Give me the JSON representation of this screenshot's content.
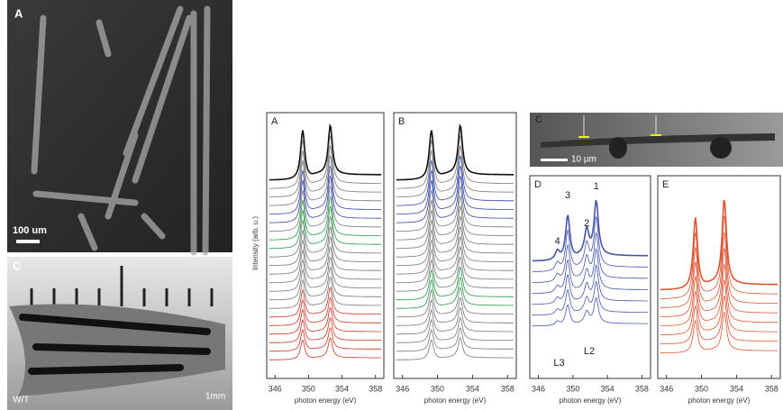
{
  "photos": [
    {
      "label": "A",
      "scale_bar": "100 um"
    },
    {
      "label": "C",
      "corner": "W/T",
      "scale_bar": "1mm"
    }
  ],
  "spectra": {
    "y_label": "Intensity (arb. u.)",
    "panels": [
      {
        "label": "A",
        "x_label": "photon energy (eV)",
        "xticks": [
          346,
          350,
          354,
          358
        ]
      },
      {
        "label": "B",
        "x_label": "photon energy (eV)",
        "xticks": [
          346,
          350,
          354,
          358
        ]
      },
      {
        "label": "D",
        "x_label": "photon energy (eV)",
        "xticks": [
          346,
          350,
          354,
          358
        ]
      },
      {
        "label": "E",
        "x_label": "photon energy (eV)",
        "xticks": [
          346,
          350,
          354,
          358
        ]
      }
    ],
    "inset": {
      "label": "C",
      "scale_bar": "10 µm"
    },
    "peaks": [
      "1",
      "2",
      "3",
      "4"
    ],
    "edges": [
      "L3",
      "L2"
    ]
  }
}
